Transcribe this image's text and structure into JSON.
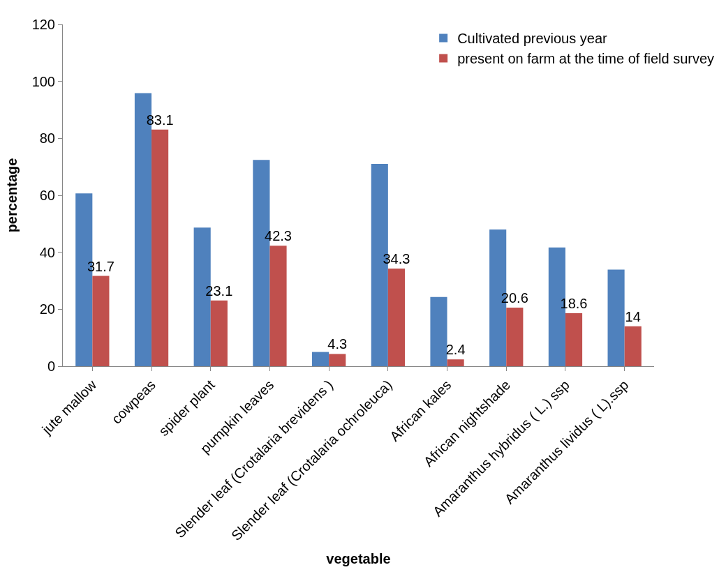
{
  "chart_data": {
    "type": "bar",
    "xlabel": "vegetable",
    "ylabel": "percentage",
    "categories": [
      "jute mallow",
      "cowpeas",
      "spider plant",
      "pumpkin leaves",
      "Slender leaf (Crotalaria brevidens )",
      "Slender leaf (Crotalaria ochroleuca)",
      "African kales",
      "African nightshade",
      "Amaranthus hybridus ( L.) ssp",
      "Amaranthus lividus ( L).ssp"
    ],
    "series": [
      {
        "name": "Cultivated previous year",
        "color": "#4f81bd",
        "values": [
          60.7,
          95.9,
          48.7,
          72.4,
          5.0,
          71.0,
          24.3,
          48.0,
          41.7,
          33.9
        ]
      },
      {
        "name": "present on farm at the time of field survey",
        "color": "#c0504d",
        "values": [
          31.7,
          83.1,
          23.1,
          42.3,
          4.3,
          34.3,
          2.4,
          20.6,
          18.6,
          14
        ],
        "value_labels": [
          "31.7",
          "83.1",
          "23.1",
          "42.3",
          "4.3",
          "34.3",
          "2.4",
          "20.6",
          "18.6",
          "14"
        ]
      }
    ],
    "ylim": [
      0,
      120
    ],
    "yticks": [
      0,
      20,
      40,
      60,
      80,
      100,
      120
    ],
    "grid": false,
    "legend": "top right"
  }
}
